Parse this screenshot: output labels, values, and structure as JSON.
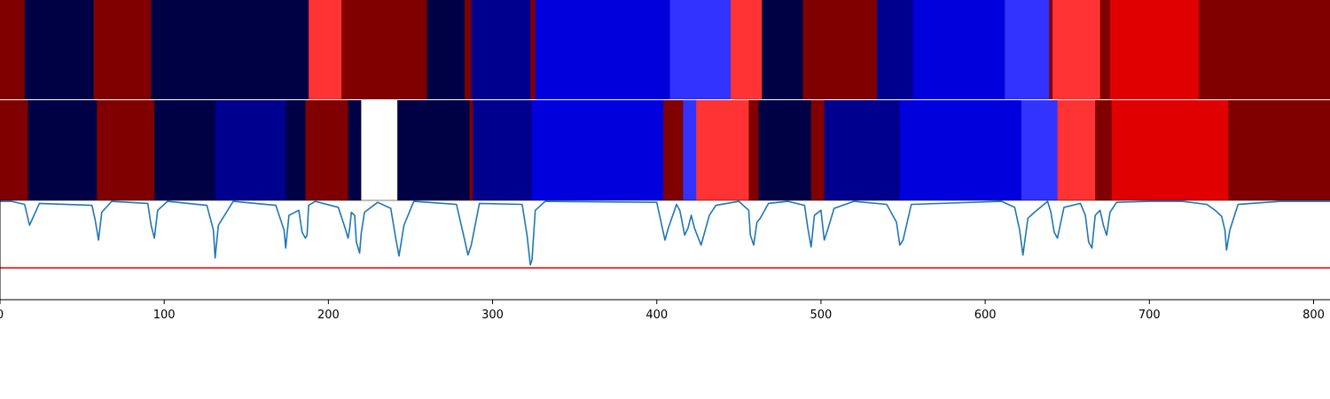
{
  "chart_data": {
    "type": "heatmap",
    "title": "",
    "xlabel": "",
    "ylabel": "",
    "xlim": [
      0,
      810
    ],
    "grid": false,
    "x_ticks": [
      {
        "value": 0,
        "label": "0"
      },
      {
        "value": 100,
        "label": "100"
      },
      {
        "value": 200,
        "label": "200"
      },
      {
        "value": 300,
        "label": "300"
      },
      {
        "value": 400,
        "label": "400"
      },
      {
        "value": 500,
        "label": "500"
      },
      {
        "value": 600,
        "label": "600"
      },
      {
        "value": 700,
        "label": "700"
      },
      {
        "value": 800,
        "label": "800"
      }
    ],
    "segmentation_rows": [
      {
        "name": "",
        "segments": [
          {
            "start": 0,
            "end": 15,
            "color": "#800000"
          },
          {
            "start": 15,
            "end": 57,
            "color": "#000045"
          },
          {
            "start": 57,
            "end": 92,
            "color": "#800000"
          },
          {
            "start": 92,
            "end": 188,
            "color": "#000045"
          },
          {
            "start": 188,
            "end": 208,
            "color": "#ff3333"
          },
          {
            "start": 208,
            "end": 260,
            "color": "#800000"
          },
          {
            "start": 260,
            "end": 283,
            "color": "#000045"
          },
          {
            "start": 283,
            "end": 287,
            "color": "#800000"
          },
          {
            "start": 287,
            "end": 323,
            "color": "#00008e"
          },
          {
            "start": 323,
            "end": 326,
            "color": "#800000"
          },
          {
            "start": 326,
            "end": 408,
            "color": "#0000dd"
          },
          {
            "start": 408,
            "end": 445,
            "color": "#3333ff"
          },
          {
            "start": 445,
            "end": 464,
            "color": "#ff3333"
          },
          {
            "start": 464,
            "end": 489,
            "color": "#000045"
          },
          {
            "start": 489,
            "end": 534,
            "color": "#800000"
          },
          {
            "start": 534,
            "end": 556,
            "color": "#00008e"
          },
          {
            "start": 556,
            "end": 612,
            "color": "#0000dd"
          },
          {
            "start": 612,
            "end": 639,
            "color": "#3333ff"
          },
          {
            "start": 639,
            "end": 641,
            "color": "#800000"
          },
          {
            "start": 641,
            "end": 670,
            "color": "#ff3333"
          },
          {
            "start": 670,
            "end": 676,
            "color": "#800000"
          },
          {
            "start": 676,
            "end": 730,
            "color": "#e00000"
          },
          {
            "start": 730,
            "end": 810,
            "color": "#800000"
          }
        ]
      },
      {
        "name": "",
        "segments": [
          {
            "start": 0,
            "end": 17,
            "color": "#800000"
          },
          {
            "start": 17,
            "end": 59,
            "color": "#000045"
          },
          {
            "start": 59,
            "end": 94,
            "color": "#800000"
          },
          {
            "start": 94,
            "end": 131,
            "color": "#000045"
          },
          {
            "start": 131,
            "end": 174,
            "color": "#00008e"
          },
          {
            "start": 174,
            "end": 186,
            "color": "#000045"
          },
          {
            "start": 186,
            "end": 212,
            "color": "#800000"
          },
          {
            "start": 212,
            "end": 220,
            "color": "#000045"
          },
          {
            "start": 220,
            "end": 242,
            "color": "#ffffff"
          },
          {
            "start": 242,
            "end": 286,
            "color": "#000045"
          },
          {
            "start": 286,
            "end": 288,
            "color": "#800000"
          },
          {
            "start": 288,
            "end": 324,
            "color": "#00008e"
          },
          {
            "start": 324,
            "end": 404,
            "color": "#0000dd"
          },
          {
            "start": 404,
            "end": 416,
            "color": "#800000"
          },
          {
            "start": 416,
            "end": 424,
            "color": "#3333ff"
          },
          {
            "start": 424,
            "end": 456,
            "color": "#ff3333"
          },
          {
            "start": 456,
            "end": 462,
            "color": "#800000"
          },
          {
            "start": 462,
            "end": 494,
            "color": "#000045"
          },
          {
            "start": 494,
            "end": 502,
            "color": "#800000"
          },
          {
            "start": 502,
            "end": 548,
            "color": "#00008e"
          },
          {
            "start": 548,
            "end": 622,
            "color": "#0000dd"
          },
          {
            "start": 622,
            "end": 644,
            "color": "#3333ff"
          },
          {
            "start": 644,
            "end": 667,
            "color": "#ff3333"
          },
          {
            "start": 667,
            "end": 677,
            "color": "#800000"
          },
          {
            "start": 677,
            "end": 748,
            "color": "#e00000"
          },
          {
            "start": 748,
            "end": 810,
            "color": "#800000"
          }
        ]
      }
    ],
    "signal": {
      "name": "",
      "color": "#1f77b4",
      "ylim": [
        0,
        1
      ],
      "baseline": 1.0,
      "threshold": {
        "value": 0.32,
        "color": "#e00000"
      },
      "x": [
        0,
        7,
        15,
        18,
        24,
        56,
        58,
        60,
        62,
        68,
        90,
        92,
        94,
        96,
        102,
        126,
        130,
        131,
        133,
        142,
        168,
        173,
        174,
        176,
        182,
        184,
        186,
        187,
        188,
        192,
        206,
        210,
        212,
        213,
        214,
        216,
        217,
        219,
        220,
        222,
        230,
        238,
        241,
        243,
        246,
        252,
        278,
        283,
        285,
        287,
        292,
        318,
        321,
        323,
        324,
        326,
        332,
        400,
        403,
        405,
        407,
        412,
        414,
        417,
        419,
        421,
        423,
        427,
        432,
        436,
        450,
        456,
        457,
        459,
        461,
        463,
        468,
        480,
        490,
        492,
        494,
        496,
        500,
        502,
        504,
        508,
        520,
        540,
        546,
        548,
        550,
        555,
        610,
        618,
        621,
        623,
        626,
        630,
        638,
        640,
        642,
        644,
        648,
        658,
        661,
        663,
        665,
        667,
        670,
        672,
        674,
        676,
        680,
        700,
        720,
        735,
        740,
        744,
        746,
        747,
        749,
        754,
        780,
        810
      ],
      "y": [
        0.99,
        0.99,
        0.96,
        0.75,
        0.97,
        0.95,
        0.8,
        0.6,
        0.88,
        0.99,
        0.97,
        0.75,
        0.62,
        0.9,
        0.99,
        0.95,
        0.7,
        0.42,
        0.75,
        0.99,
        0.95,
        0.7,
        0.52,
        0.85,
        0.9,
        0.68,
        0.62,
        0.65,
        0.95,
        0.99,
        0.93,
        0.73,
        0.62,
        0.72,
        0.88,
        0.85,
        0.58,
        0.47,
        0.67,
        0.88,
        0.98,
        0.92,
        0.62,
        0.44,
        0.75,
        0.99,
        0.96,
        0.6,
        0.45,
        0.55,
        0.97,
        0.96,
        0.65,
        0.35,
        0.4,
        0.9,
        0.99,
        0.98,
        0.75,
        0.6,
        0.72,
        0.96,
        0.9,
        0.65,
        0.72,
        0.85,
        0.72,
        0.55,
        0.85,
        0.95,
        0.99,
        0.9,
        0.65,
        0.55,
        0.78,
        0.82,
        0.97,
        0.99,
        0.95,
        0.72,
        0.53,
        0.85,
        0.9,
        0.6,
        0.7,
        0.92,
        0.99,
        0.96,
        0.78,
        0.55,
        0.6,
        0.96,
        0.99,
        0.93,
        0.7,
        0.45,
        0.82,
        0.88,
        0.99,
        0.88,
        0.68,
        0.62,
        0.93,
        0.97,
        0.85,
        0.58,
        0.52,
        0.85,
        0.9,
        0.75,
        0.65,
        0.88,
        0.98,
        0.99,
        0.99,
        0.96,
        0.9,
        0.84,
        0.7,
        0.5,
        0.7,
        0.96,
        0.99,
        0.99
      ]
    }
  }
}
